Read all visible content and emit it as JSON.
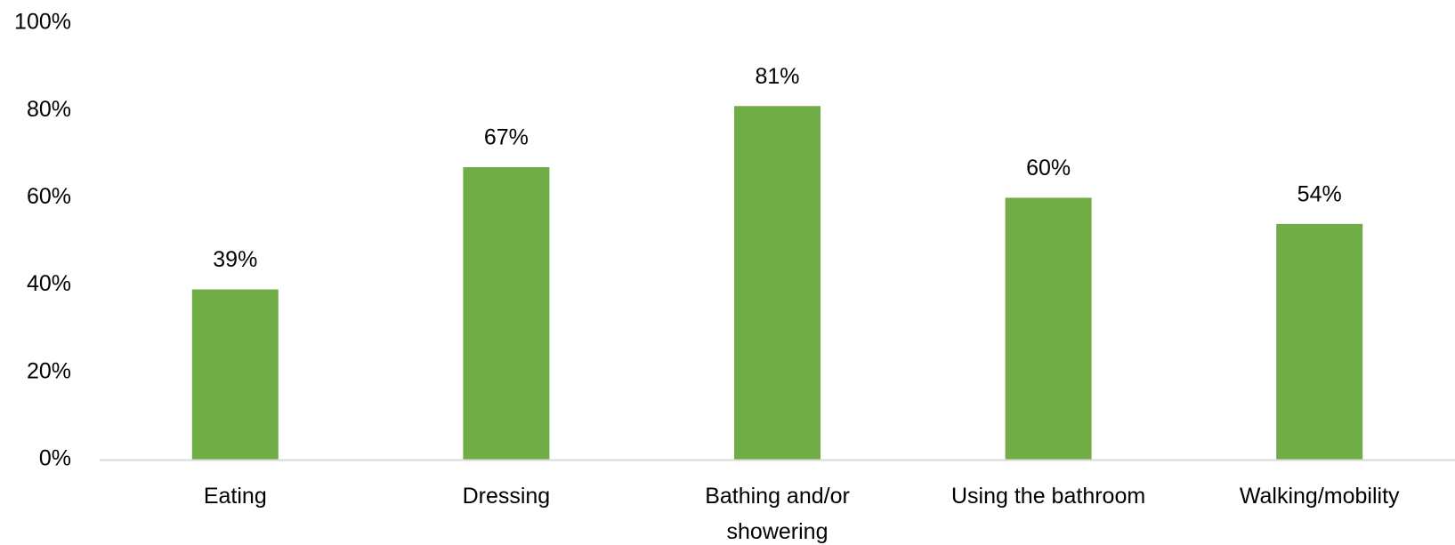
{
  "chart_data": {
    "type": "bar",
    "categories": [
      "Eating",
      "Dressing",
      "Bathing and/or showering",
      "Using the bathroom",
      "Walking/mobility"
    ],
    "category_lines": [
      [
        "Eating"
      ],
      [
        "Dressing"
      ],
      [
        "Bathing and/or",
        "showering"
      ],
      [
        "Using the bathroom"
      ],
      [
        "Walking/mobility"
      ]
    ],
    "values": [
      39,
      67,
      81,
      60,
      54
    ],
    "data_labels": [
      "39%",
      "67%",
      "81%",
      "60%",
      "54%"
    ],
    "ylim": [
      0,
      100
    ],
    "yticks": [
      0,
      20,
      40,
      60,
      80,
      100
    ],
    "ytick_labels": [
      "0%",
      "20%",
      "40%",
      "60%",
      "80%",
      "100%"
    ],
    "bar_color": "#70AD47",
    "axis_color": "#D9D9D9",
    "grid": false,
    "legend": "none"
  }
}
